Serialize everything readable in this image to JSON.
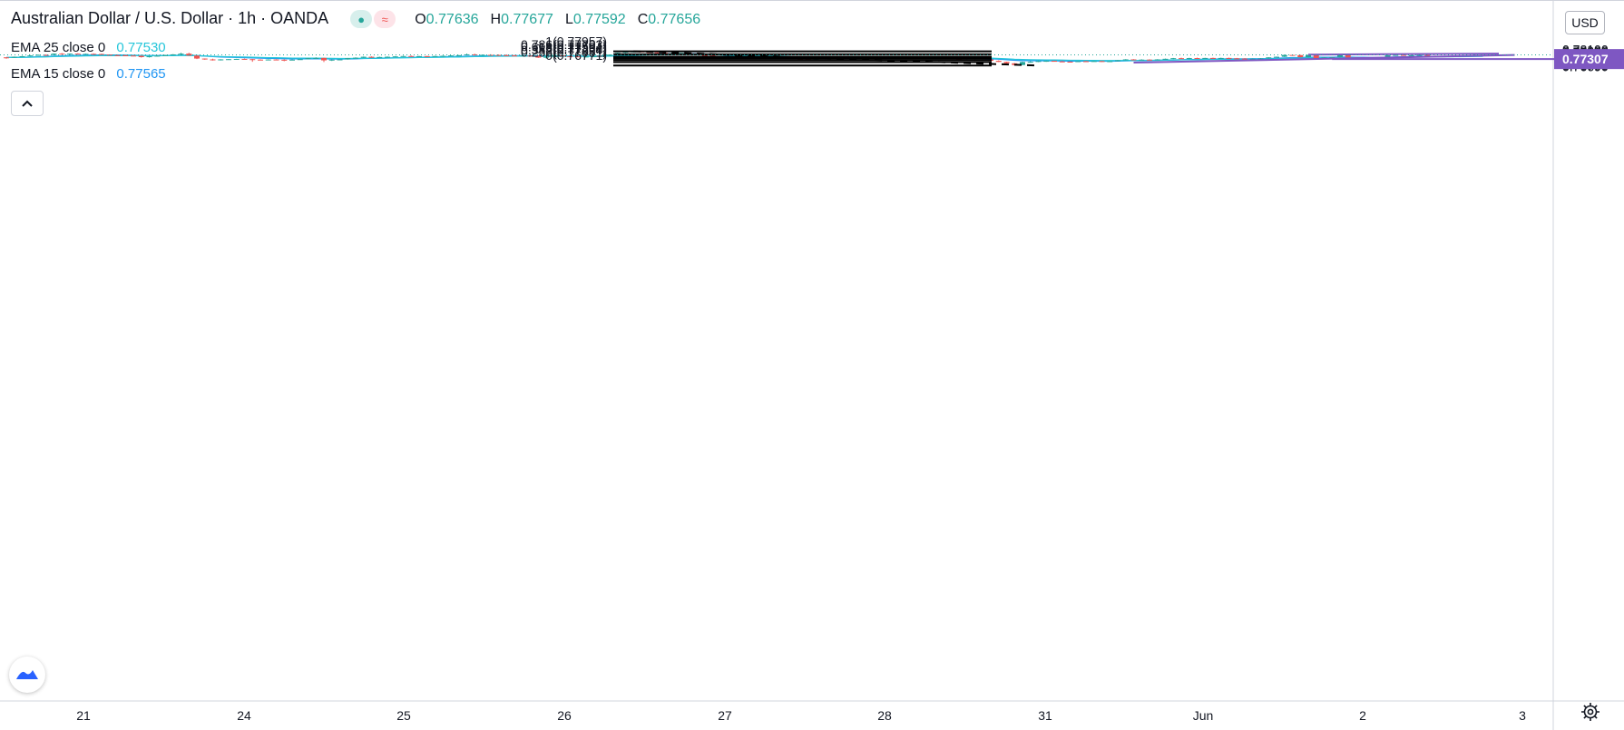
{
  "header": {
    "symbol": "Australian Dollar / U.S. Dollar",
    "interval": "1h",
    "exchange": "OANDA",
    "ohlc": [
      {
        "label": "O",
        "value": "0.77636"
      },
      {
        "label": "H",
        "value": "0.77677"
      },
      {
        "label": "L",
        "value": "0.77592"
      },
      {
        "label": "C",
        "value": "0.77656"
      }
    ]
  },
  "indicators": [
    {
      "name": "EMA",
      "params": "25 close 0",
      "value": "0.77530",
      "color": "#26c6da"
    },
    {
      "name": "EMA",
      "params": "15 close 0",
      "value": "0.77565",
      "color": "#2196f3"
    }
  ],
  "currency_button": "USD",
  "colors": {
    "up": "#26a69a",
    "down": "#ef5350",
    "annotation": "#7e57c2"
  },
  "chart_data": {
    "type": "candlestick",
    "y_axis": {
      "min": 0.7665,
      "max": 0.7812,
      "ticks": [
        "0.78100",
        "0.78000",
        "0.77900",
        "0.77800",
        "0.77700",
        "0.77600",
        "0.77500",
        "0.77400",
        "0.77300",
        "0.77200",
        "0.77100",
        "0.77000",
        "0.76920",
        "0.76840",
        "0.76760",
        "0.76690"
      ]
    },
    "x_axis": {
      "ticks": [
        "21",
        "24",
        "25",
        "26",
        "27",
        "28",
        "31",
        "Jun",
        "2",
        "3"
      ]
    },
    "last_price": 0.77656,
    "price_labels": [
      {
        "value": 0.77307,
        "text": "0.77307",
        "color": "#7e57c2"
      }
    ],
    "fibonacci": {
      "high": 0.77957,
      "low": 0.76771,
      "levels": [
        {
          "ratio": 1,
          "price": 0.77957,
          "label": "1(0.77957)"
        },
        {
          "ratio": 0.786,
          "price": 0.77703,
          "label": "0.786(0.77703)"
        },
        {
          "ratio": 0.618,
          "price": 0.77504,
          "label": "0.618(0.77504)"
        },
        {
          "ratio": 0.5,
          "price": 0.77364,
          "label": "0.5(0.77364)"
        },
        {
          "ratio": 0.382,
          "price": 0.77224,
          "label": "0.382(0.77224)"
        },
        {
          "ratio": 0.236,
          "price": 0.77051,
          "label": "0.236(0.77051)"
        },
        {
          "ratio": 0,
          "price": 0.76771,
          "label": "0(0.76771)"
        }
      ]
    },
    "trendlines": [
      {
        "name": "upper-channel-line",
        "from": {
          "bar": 164,
          "price": 0.77682
        },
        "to": {
          "bar": 188,
          "price": 0.77762
        }
      },
      {
        "name": "lower-trend-line",
        "from": {
          "bar": 142,
          "price": 0.77013
        },
        "to": {
          "bar": 190,
          "price": 0.77645
        }
      },
      {
        "name": "horizontal-support-line",
        "from": {
          "bar": 167,
          "price": 0.77307
        },
        "to": {
          "bar": 205,
          "price": 0.77307
        }
      }
    ],
    "swing_line": {
      "from": {
        "bar": 79,
        "price": 0.77957
      },
      "to": {
        "bar": 129,
        "price": 0.76771
      }
    },
    "candles": [
      [
        0.7745,
        0.7747,
        0.7734,
        0.7744
      ],
      [
        0.7744,
        0.7752,
        0.7742,
        0.775
      ],
      [
        0.775,
        0.7757,
        0.7747,
        0.7755
      ],
      [
        0.7755,
        0.7764,
        0.7752,
        0.7761
      ],
      [
        0.7761,
        0.7769,
        0.7759,
        0.7766
      ],
      [
        0.7766,
        0.777,
        0.776,
        0.7765
      ],
      [
        0.7765,
        0.7778,
        0.7763,
        0.7776
      ],
      [
        0.7776,
        0.7781,
        0.7769,
        0.7772
      ],
      [
        0.7772,
        0.7778,
        0.7765,
        0.7776
      ],
      [
        0.7776,
        0.7779,
        0.777,
        0.7772
      ],
      [
        0.7772,
        0.7776,
        0.7769,
        0.7774
      ],
      [
        0.7774,
        0.7778,
        0.777,
        0.7773
      ],
      [
        0.7773,
        0.7776,
        0.7766,
        0.7768
      ],
      [
        0.7768,
        0.777,
        0.7762,
        0.7763
      ],
      [
        0.7763,
        0.7766,
        0.7758,
        0.7762
      ],
      [
        0.7762,
        0.7765,
        0.7757,
        0.776
      ],
      [
        0.776,
        0.7762,
        0.7754,
        0.7758
      ],
      [
        0.7758,
        0.776,
        0.7743,
        0.7747
      ],
      [
        0.7747,
        0.7756,
        0.7744,
        0.7754
      ],
      [
        0.7754,
        0.7762,
        0.7752,
        0.7759
      ],
      [
        0.7759,
        0.7766,
        0.7756,
        0.7764
      ],
      [
        0.7764,
        0.7772,
        0.7761,
        0.777
      ],
      [
        0.777,
        0.7783,
        0.7762,
        0.7776
      ],
      [
        0.7776,
        0.7783,
        0.7757,
        0.776
      ],
      [
        0.776,
        0.7762,
        0.7731,
        0.7735
      ],
      [
        0.7735,
        0.7736,
        0.7725,
        0.7728
      ],
      [
        0.7728,
        0.7734,
        0.7718,
        0.7721
      ],
      [
        0.7721,
        0.773,
        0.7719,
        0.7728
      ],
      [
        0.7728,
        0.7731,
        0.7725,
        0.773
      ],
      [
        0.773,
        0.7733,
        0.7727,
        0.7732
      ],
      [
        0.7732,
        0.7735,
        0.7728,
        0.773
      ],
      [
        0.773,
        0.7732,
        0.7708,
        0.7726
      ],
      [
        0.7726,
        0.7729,
        0.7723,
        0.7724
      ],
      [
        0.7724,
        0.7729,
        0.7722,
        0.7727
      ],
      [
        0.7727,
        0.7729,
        0.7722,
        0.7725
      ],
      [
        0.7725,
        0.7729,
        0.7713,
        0.7724
      ],
      [
        0.7724,
        0.7728,
        0.7723,
        0.7726
      ],
      [
        0.7726,
        0.7732,
        0.7725,
        0.773
      ],
      [
        0.773,
        0.774,
        0.7729,
        0.7738
      ],
      [
        0.7738,
        0.7745,
        0.7735,
        0.774
      ],
      [
        0.774,
        0.7742,
        0.7706,
        0.772
      ],
      [
        0.772,
        0.7728,
        0.7715,
        0.7726
      ],
      [
        0.7726,
        0.7729,
        0.7722,
        0.7728
      ],
      [
        0.7728,
        0.774,
        0.7726,
        0.7738
      ],
      [
        0.7738,
        0.7745,
        0.7736,
        0.7742
      ],
      [
        0.7742,
        0.7752,
        0.774,
        0.775
      ],
      [
        0.775,
        0.7753,
        0.774,
        0.7745
      ],
      [
        0.7745,
        0.7751,
        0.7742,
        0.7748
      ],
      [
        0.7748,
        0.7753,
        0.7746,
        0.775
      ],
      [
        0.775,
        0.7755,
        0.7748,
        0.7753
      ],
      [
        0.7753,
        0.7758,
        0.775,
        0.7756
      ],
      [
        0.7756,
        0.776,
        0.7752,
        0.7754
      ],
      [
        0.7754,
        0.7757,
        0.7751,
        0.7755
      ],
      [
        0.7755,
        0.7758,
        0.7752,
        0.7753
      ],
      [
        0.7753,
        0.7757,
        0.7751,
        0.7756
      ],
      [
        0.7756,
        0.776,
        0.7754,
        0.7758
      ],
      [
        0.7758,
        0.7762,
        0.7755,
        0.7761
      ],
      [
        0.7761,
        0.7764,
        0.7757,
        0.7763
      ],
      [
        0.7763,
        0.7776,
        0.7761,
        0.777
      ],
      [
        0.777,
        0.7775,
        0.7761,
        0.7764
      ],
      [
        0.7764,
        0.777,
        0.776,
        0.7766
      ],
      [
        0.7766,
        0.7771,
        0.7762,
        0.7765
      ],
      [
        0.7765,
        0.7769,
        0.776,
        0.7763
      ],
      [
        0.7763,
        0.777,
        0.7758,
        0.7761
      ],
      [
        0.7761,
        0.7765,
        0.7756,
        0.7758
      ],
      [
        0.7758,
        0.7764,
        0.7756,
        0.776
      ],
      [
        0.776,
        0.7764,
        0.7754,
        0.7757
      ],
      [
        0.7757,
        0.7762,
        0.774,
        0.7743
      ],
      [
        0.7743,
        0.7754,
        0.7736,
        0.775
      ],
      [
        0.775,
        0.7764,
        0.7748,
        0.7762
      ],
      [
        0.7762,
        0.7765,
        0.7752,
        0.7754
      ],
      [
        0.7754,
        0.7758,
        0.7751,
        0.7753
      ],
      [
        0.7753,
        0.7756,
        0.7749,
        0.7751
      ],
      [
        0.7751,
        0.7754,
        0.7748,
        0.7752
      ],
      [
        0.7752,
        0.7756,
        0.775,
        0.7754
      ],
      [
        0.7754,
        0.776,
        0.7752,
        0.7758
      ],
      [
        0.7758,
        0.777,
        0.7756,
        0.7768
      ],
      [
        0.7768,
        0.7785,
        0.7766,
        0.7783
      ],
      [
        0.7783,
        0.7793,
        0.778,
        0.7791
      ],
      [
        0.7791,
        0.7796,
        0.7786,
        0.7794
      ],
      [
        0.7794,
        0.7795,
        0.7788,
        0.7789
      ],
      [
        0.7789,
        0.779,
        0.7782,
        0.7787
      ],
      [
        0.7787,
        0.7788,
        0.7778,
        0.7782
      ],
      [
        0.7782,
        0.7785,
        0.7776,
        0.7779
      ],
      [
        0.7779,
        0.7782,
        0.7777,
        0.7781
      ],
      [
        0.7781,
        0.7783,
        0.7778,
        0.7782
      ],
      [
        0.7782,
        0.7784,
        0.7776,
        0.7776
      ],
      [
        0.7776,
        0.7778,
        0.7765,
        0.7766
      ],
      [
        0.7766,
        0.7768,
        0.776,
        0.7762
      ],
      [
        0.7762,
        0.7764,
        0.774,
        0.7748
      ],
      [
        0.7748,
        0.7752,
        0.7741,
        0.7742
      ],
      [
        0.7742,
        0.7748,
        0.773,
        0.7745
      ],
      [
        0.7745,
        0.7748,
        0.774,
        0.7742
      ],
      [
        0.7742,
        0.7747,
        0.7741,
        0.7745
      ],
      [
        0.7745,
        0.7748,
        0.774,
        0.7741
      ],
      [
        0.7741,
        0.7748,
        0.7739,
        0.7745
      ],
      [
        0.7745,
        0.775,
        0.7742,
        0.7743
      ],
      [
        0.7743,
        0.7748,
        0.774,
        0.7742
      ],
      [
        0.7742,
        0.7746,
        0.7738,
        0.774
      ],
      [
        0.774,
        0.7742,
        0.7732,
        0.7735
      ],
      [
        0.7735,
        0.7738,
        0.7723,
        0.7734
      ],
      [
        0.7734,
        0.7737,
        0.7731,
        0.7732
      ],
      [
        0.7732,
        0.7738,
        0.773,
        0.7736
      ],
      [
        0.7736,
        0.7744,
        0.7734,
        0.7742
      ],
      [
        0.7742,
        0.775,
        0.774,
        0.7748
      ],
      [
        0.7748,
        0.7752,
        0.7744,
        0.7746
      ],
      [
        0.7746,
        0.7754,
        0.7742,
        0.7752
      ],
      [
        0.7752,
        0.7756,
        0.7738,
        0.774
      ],
      [
        0.774,
        0.7746,
        0.7736,
        0.7744
      ],
      [
        0.7744,
        0.7748,
        0.774,
        0.7741
      ],
      [
        0.7741,
        0.7746,
        0.7738,
        0.7745
      ],
      [
        0.7745,
        0.775,
        0.7742,
        0.7743
      ],
      [
        0.7743,
        0.7747,
        0.774,
        0.7741
      ],
      [
        0.7741,
        0.7744,
        0.7738,
        0.7742
      ],
      [
        0.7742,
        0.7746,
        0.7739,
        0.7744
      ],
      [
        0.7744,
        0.7747,
        0.774,
        0.7742
      ],
      [
        0.7742,
        0.7745,
        0.7739,
        0.7741
      ],
      [
        0.7741,
        0.7745,
        0.7738,
        0.7743
      ],
      [
        0.7743,
        0.7748,
        0.7742,
        0.7744
      ],
      [
        0.7744,
        0.7747,
        0.774,
        0.7742
      ],
      [
        0.7742,
        0.7745,
        0.772,
        0.7725
      ],
      [
        0.7725,
        0.7731,
        0.772,
        0.7728
      ],
      [
        0.7728,
        0.7731,
        0.7716,
        0.7723
      ],
      [
        0.7723,
        0.773,
        0.7718,
        0.7728
      ],
      [
        0.7728,
        0.7729,
        0.7712,
        0.7716
      ],
      [
        0.7716,
        0.772,
        0.7706,
        0.7707
      ],
      [
        0.7707,
        0.7708,
        0.7693,
        0.7695
      ],
      [
        0.7695,
        0.7697,
        0.76771,
        0.7681
      ],
      [
        0.7681,
        0.7709,
        0.768,
        0.7706
      ],
      [
        0.7706,
        0.7713,
        0.77,
        0.7708
      ],
      [
        0.7708,
        0.7719,
        0.7705,
        0.7714
      ],
      [
        0.7714,
        0.7718,
        0.7708,
        0.7716
      ],
      [
        0.7716,
        0.7717,
        0.7709,
        0.7711
      ],
      [
        0.7711,
        0.7715,
        0.7707,
        0.7709
      ],
      [
        0.7709,
        0.7711,
        0.7704,
        0.7708
      ],
      [
        0.7708,
        0.7714,
        0.7706,
        0.7713
      ],
      [
        0.7713,
        0.7716,
        0.771,
        0.7712
      ],
      [
        0.7712,
        0.7716,
        0.7709,
        0.7714
      ],
      [
        0.7714,
        0.7715,
        0.7707,
        0.7708
      ],
      [
        0.7708,
        0.7712,
        0.7705,
        0.7713
      ],
      [
        0.7713,
        0.7723,
        0.7711,
        0.7721
      ],
      [
        0.7721,
        0.773,
        0.7719,
        0.7728
      ],
      [
        0.7728,
        0.773,
        0.7721,
        0.7725
      ],
      [
        0.7725,
        0.7729,
        0.7722,
        0.7726
      ],
      [
        0.7726,
        0.7729,
        0.7721,
        0.7724
      ],
      [
        0.7724,
        0.773,
        0.7722,
        0.7728
      ],
      [
        0.7728,
        0.7735,
        0.7726,
        0.7733
      ],
      [
        0.7733,
        0.774,
        0.773,
        0.7738
      ],
      [
        0.7738,
        0.7742,
        0.7732,
        0.7735
      ],
      [
        0.7735,
        0.7741,
        0.7733,
        0.7739
      ],
      [
        0.7739,
        0.7742,
        0.7734,
        0.7736
      ],
      [
        0.7736,
        0.7741,
        0.7733,
        0.774
      ],
      [
        0.774,
        0.7742,
        0.7736,
        0.7738
      ],
      [
        0.7738,
        0.7742,
        0.7736,
        0.774
      ],
      [
        0.774,
        0.7742,
        0.7735,
        0.7737
      ],
      [
        0.7737,
        0.774,
        0.7733,
        0.7735
      ],
      [
        0.7735,
        0.7738,
        0.773,
        0.7733
      ],
      [
        0.7733,
        0.7736,
        0.7729,
        0.7734
      ],
      [
        0.7734,
        0.7738,
        0.7732,
        0.7736
      ],
      [
        0.7736,
        0.7746,
        0.7734,
        0.7745
      ],
      [
        0.7745,
        0.7752,
        0.7743,
        0.775
      ],
      [
        0.775,
        0.7768,
        0.7748,
        0.7765
      ],
      [
        0.7765,
        0.7768,
        0.776,
        0.7764
      ],
      [
        0.7764,
        0.7766,
        0.7745,
        0.7746
      ],
      [
        0.7746,
        0.7766,
        0.7744,
        0.7765
      ],
      [
        0.7765,
        0.7766,
        0.7734,
        0.7738
      ],
      [
        0.7738,
        0.7748,
        0.7735,
        0.7745
      ],
      [
        0.7745,
        0.775,
        0.7742,
        0.7747
      ],
      [
        0.7747,
        0.7768,
        0.7745,
        0.7765
      ],
      [
        0.7765,
        0.7766,
        0.7742,
        0.7744
      ],
      [
        0.7744,
        0.7748,
        0.7738,
        0.774
      ],
      [
        0.774,
        0.7746,
        0.7733,
        0.7735
      ],
      [
        0.7735,
        0.774,
        0.77307,
        0.7738
      ],
      [
        0.7738,
        0.7746,
        0.7736,
        0.7744
      ],
      [
        0.7744,
        0.7764,
        0.7742,
        0.7762
      ],
      [
        0.7762,
        0.7769,
        0.776,
        0.7765
      ],
      [
        0.7765,
        0.7767,
        0.7758,
        0.776
      ],
      [
        0.776,
        0.7764,
        0.7757,
        0.7762
      ],
      [
        0.7762,
        0.7766,
        0.7758,
        0.7765
      ],
      [
        0.7765,
        0.7766,
        0.7756,
        0.7757
      ],
      [
        0.7757,
        0.776,
        0.7752,
        0.7754
      ],
      [
        0.7754,
        0.7757,
        0.775,
        0.7752
      ],
      [
        0.7752,
        0.7756,
        0.775,
        0.7754
      ],
      [
        0.7754,
        0.776,
        0.7752,
        0.7758
      ],
      [
        0.7758,
        0.7765,
        0.7756,
        0.7762
      ],
      [
        0.7762,
        0.7774,
        0.7759,
        0.7764
      ],
      [
        0.77636,
        0.77677,
        0.77592,
        0.77656
      ]
    ]
  }
}
